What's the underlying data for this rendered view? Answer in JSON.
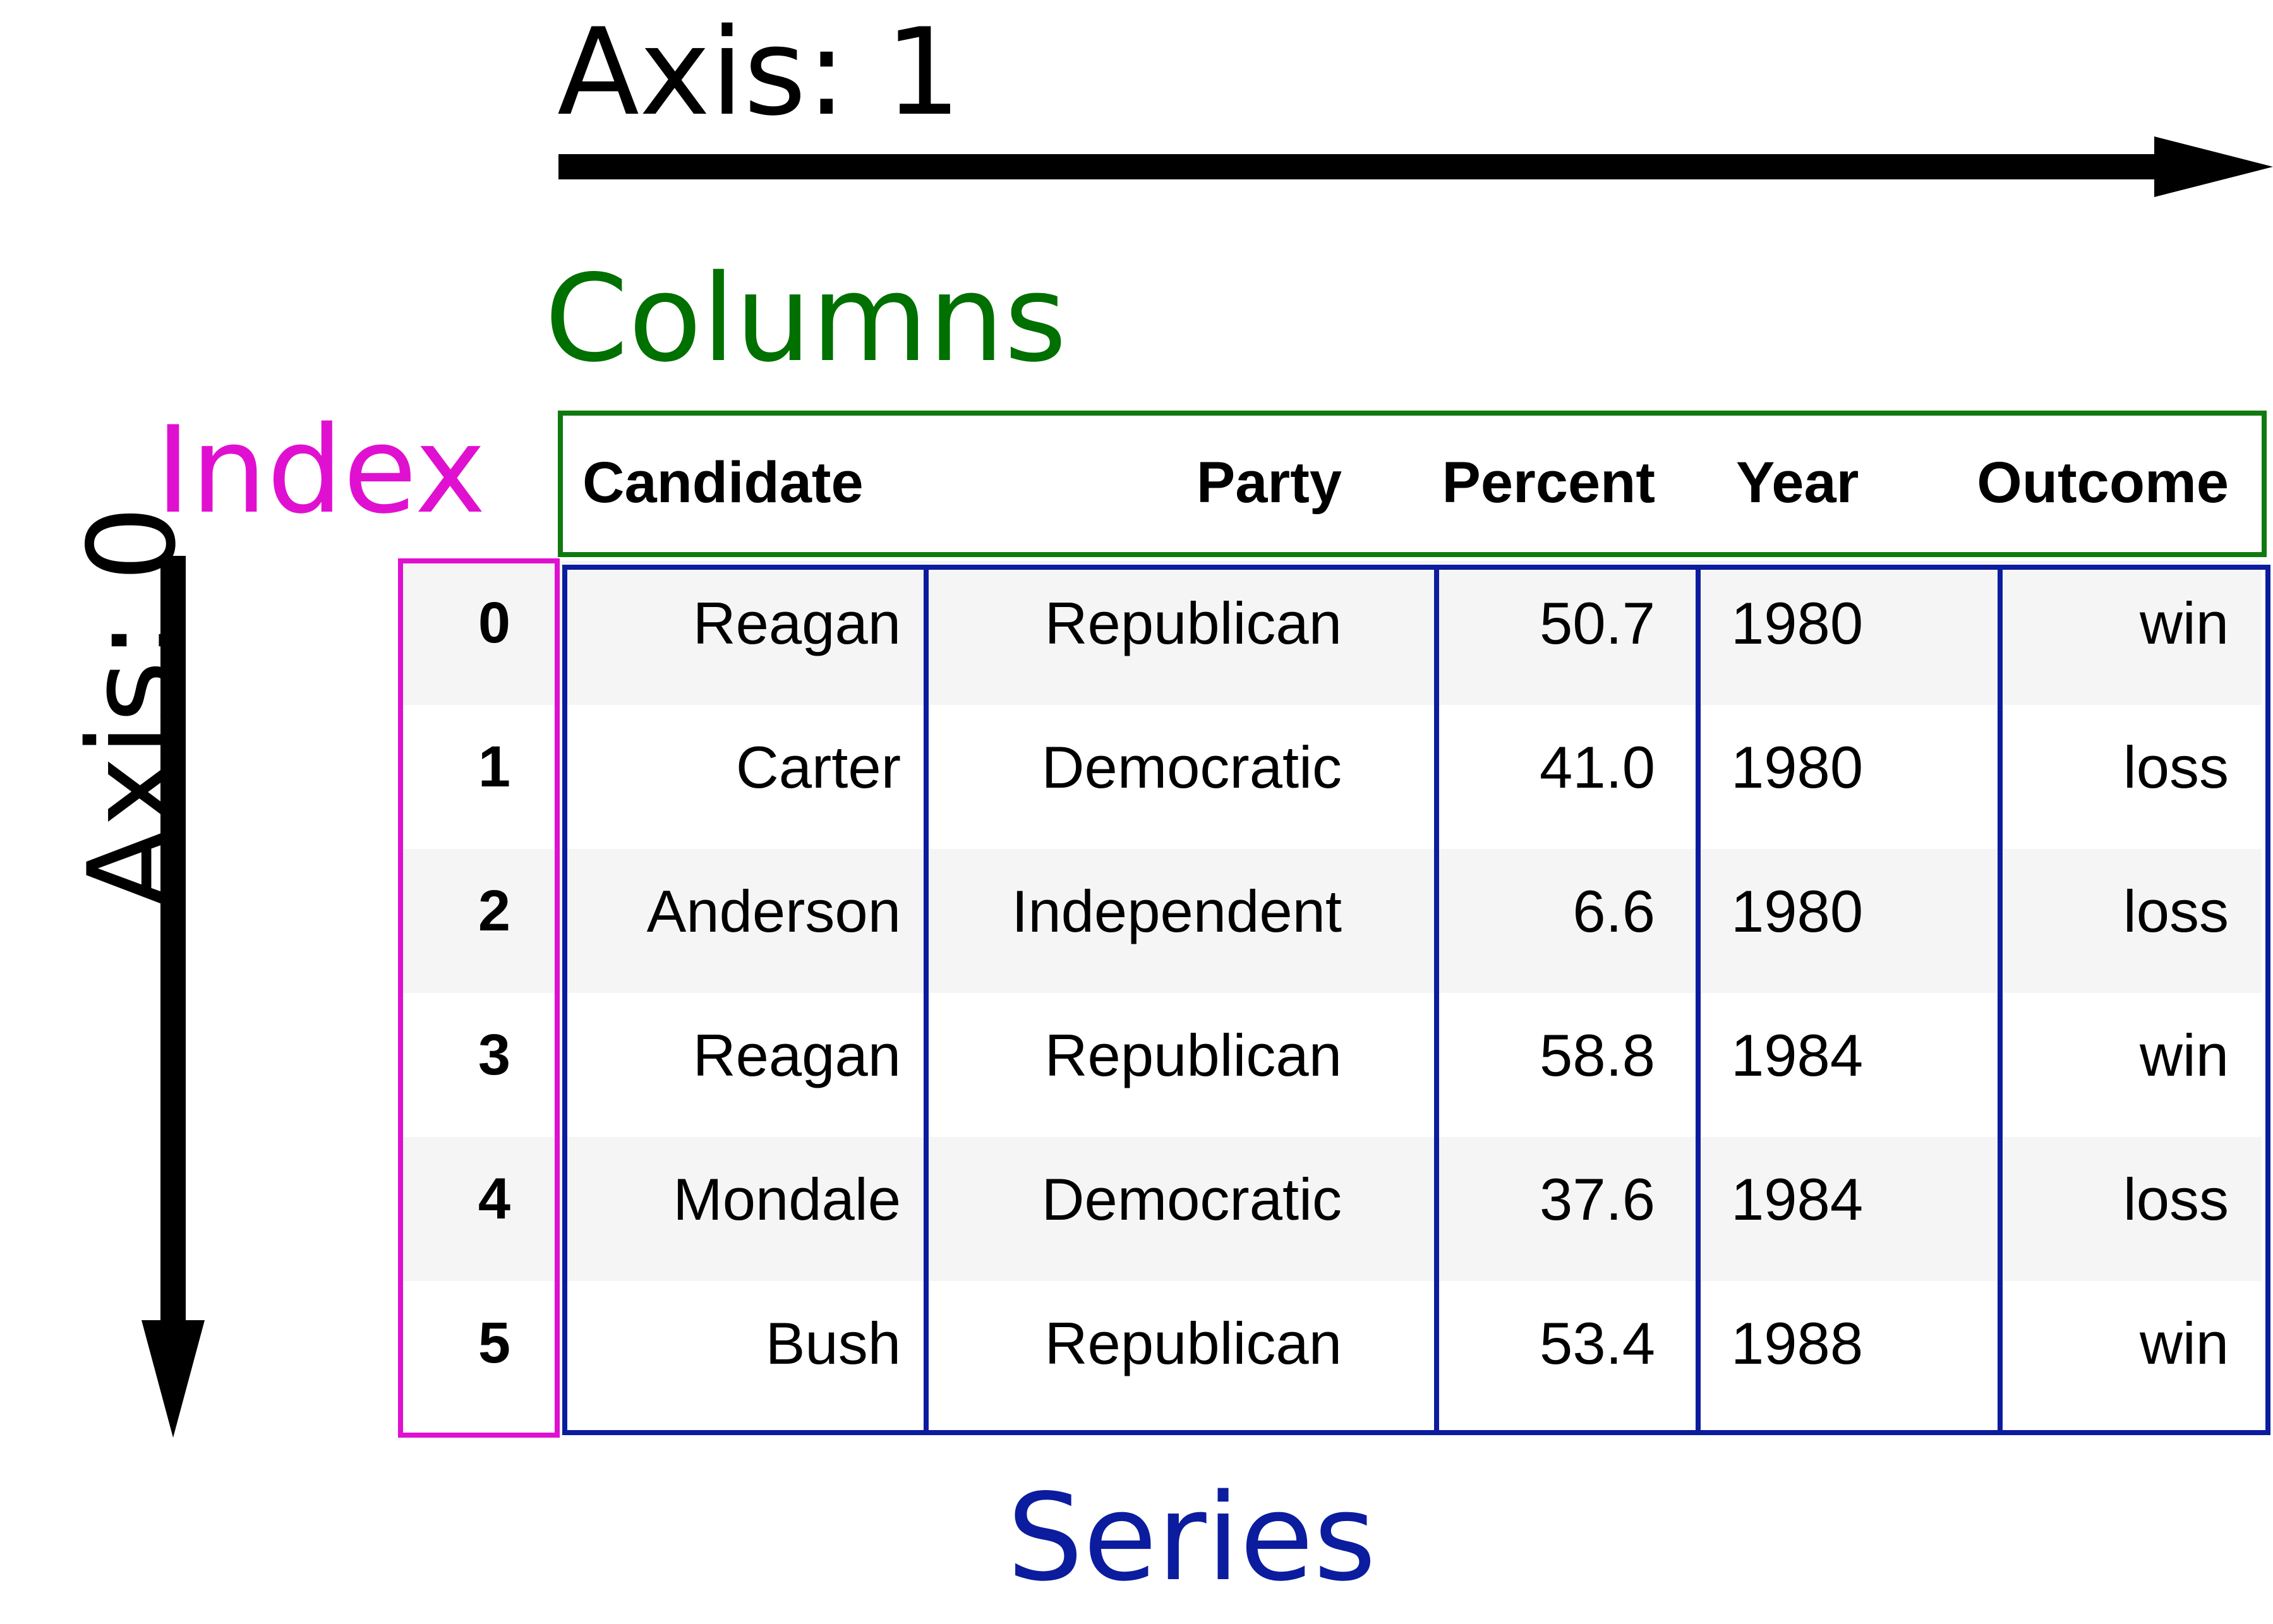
{
  "labels": {
    "axis1": "Axis: 1",
    "axis0": "Axis: 0",
    "columns": "Columns",
    "index": "Index",
    "series": "Series"
  },
  "colors": {
    "axis": "#000000",
    "columns": "#007000",
    "index": "#e010d0",
    "series": "#0b1c9e",
    "stripe": "#f5f5f5"
  },
  "table": {
    "columns": [
      "Candidate",
      "Party",
      "Percent",
      "Year",
      "Outcome"
    ],
    "rows": [
      {
        "index": "0",
        "cells": [
          "Reagan",
          "Republican",
          "50.7",
          "1980",
          "win"
        ]
      },
      {
        "index": "1",
        "cells": [
          "Carter",
          "Democratic",
          "41.0",
          "1980",
          "loss"
        ]
      },
      {
        "index": "2",
        "cells": [
          "Anderson",
          "Independent",
          "6.6",
          "1980",
          "loss"
        ]
      },
      {
        "index": "3",
        "cells": [
          "Reagan",
          "Republican",
          "58.8",
          "1984",
          "win"
        ]
      },
      {
        "index": "4",
        "cells": [
          "Mondale",
          "Democratic",
          "37.6",
          "1984",
          "loss"
        ]
      },
      {
        "index": "5",
        "cells": [
          "Bush",
          "Republican",
          "53.4",
          "1988",
          "win"
        ]
      }
    ]
  }
}
